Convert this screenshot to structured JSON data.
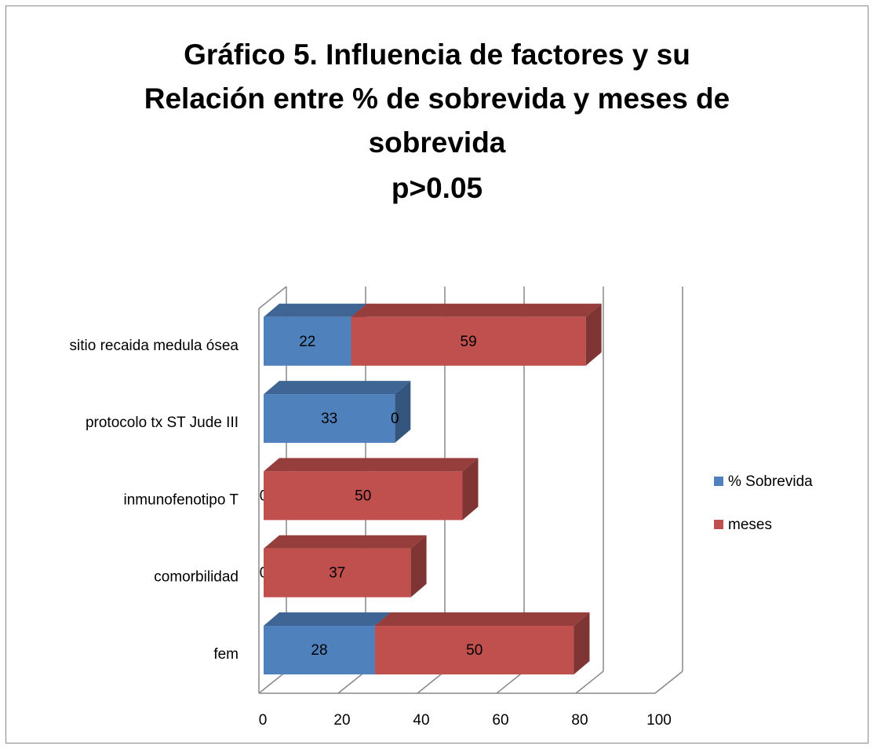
{
  "chart_data": {
    "type": "stacked-bar-3d",
    "title": [
      "Gráfico 5. Influencia de factores y su",
      "Relación entre % de sobrevida y meses de",
      "sobrevida"
    ],
    "subtitle": "p>0.05",
    "categories": [
      "fem",
      "comorbilidad",
      "inmunofenotipo T",
      "protocolo tx ST Jude III",
      "sitio recaida medula ósea"
    ],
    "series": [
      {
        "name": "% Sobrevida",
        "color": "#4f81bd",
        "values": [
          28,
          0,
          0,
          33,
          22
        ]
      },
      {
        "name": "meses",
        "color": "#c0504d",
        "values": [
          50,
          37,
          50,
          0,
          59
        ]
      }
    ],
    "xlim": [
      0,
      100
    ],
    "xticks": [
      0,
      20,
      40,
      60,
      80,
      100
    ],
    "grid": true,
    "legend": "right"
  }
}
